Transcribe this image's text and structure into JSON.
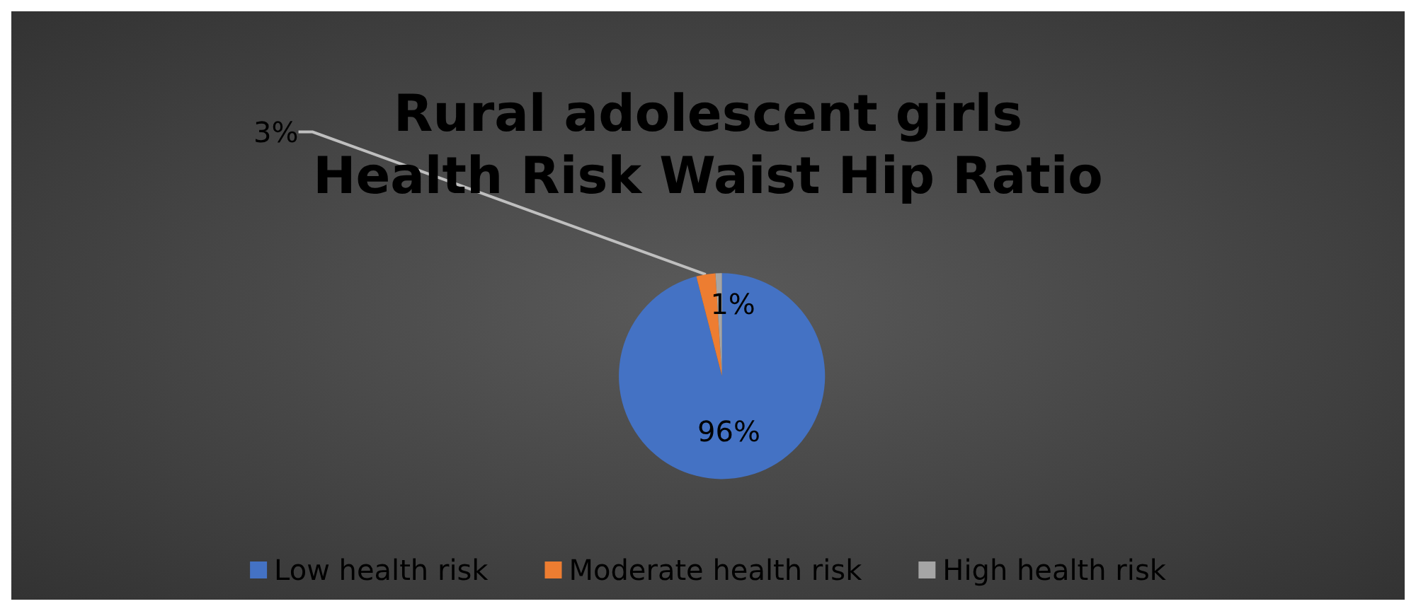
{
  "chart_data": {
    "type": "pie",
    "title": "Rural adolescent girls\nHealth Risk Waist Hip Ratio",
    "categories": [
      "Low health risk",
      "Moderate health risk",
      "High health risk"
    ],
    "values": [
      96,
      3,
      1
    ],
    "colors": [
      "#4472c4",
      "#ed7d31",
      "#a5a5a5"
    ],
    "value_labels": [
      "96%",
      "3%",
      "1%"
    ],
    "legend": "bottom"
  }
}
